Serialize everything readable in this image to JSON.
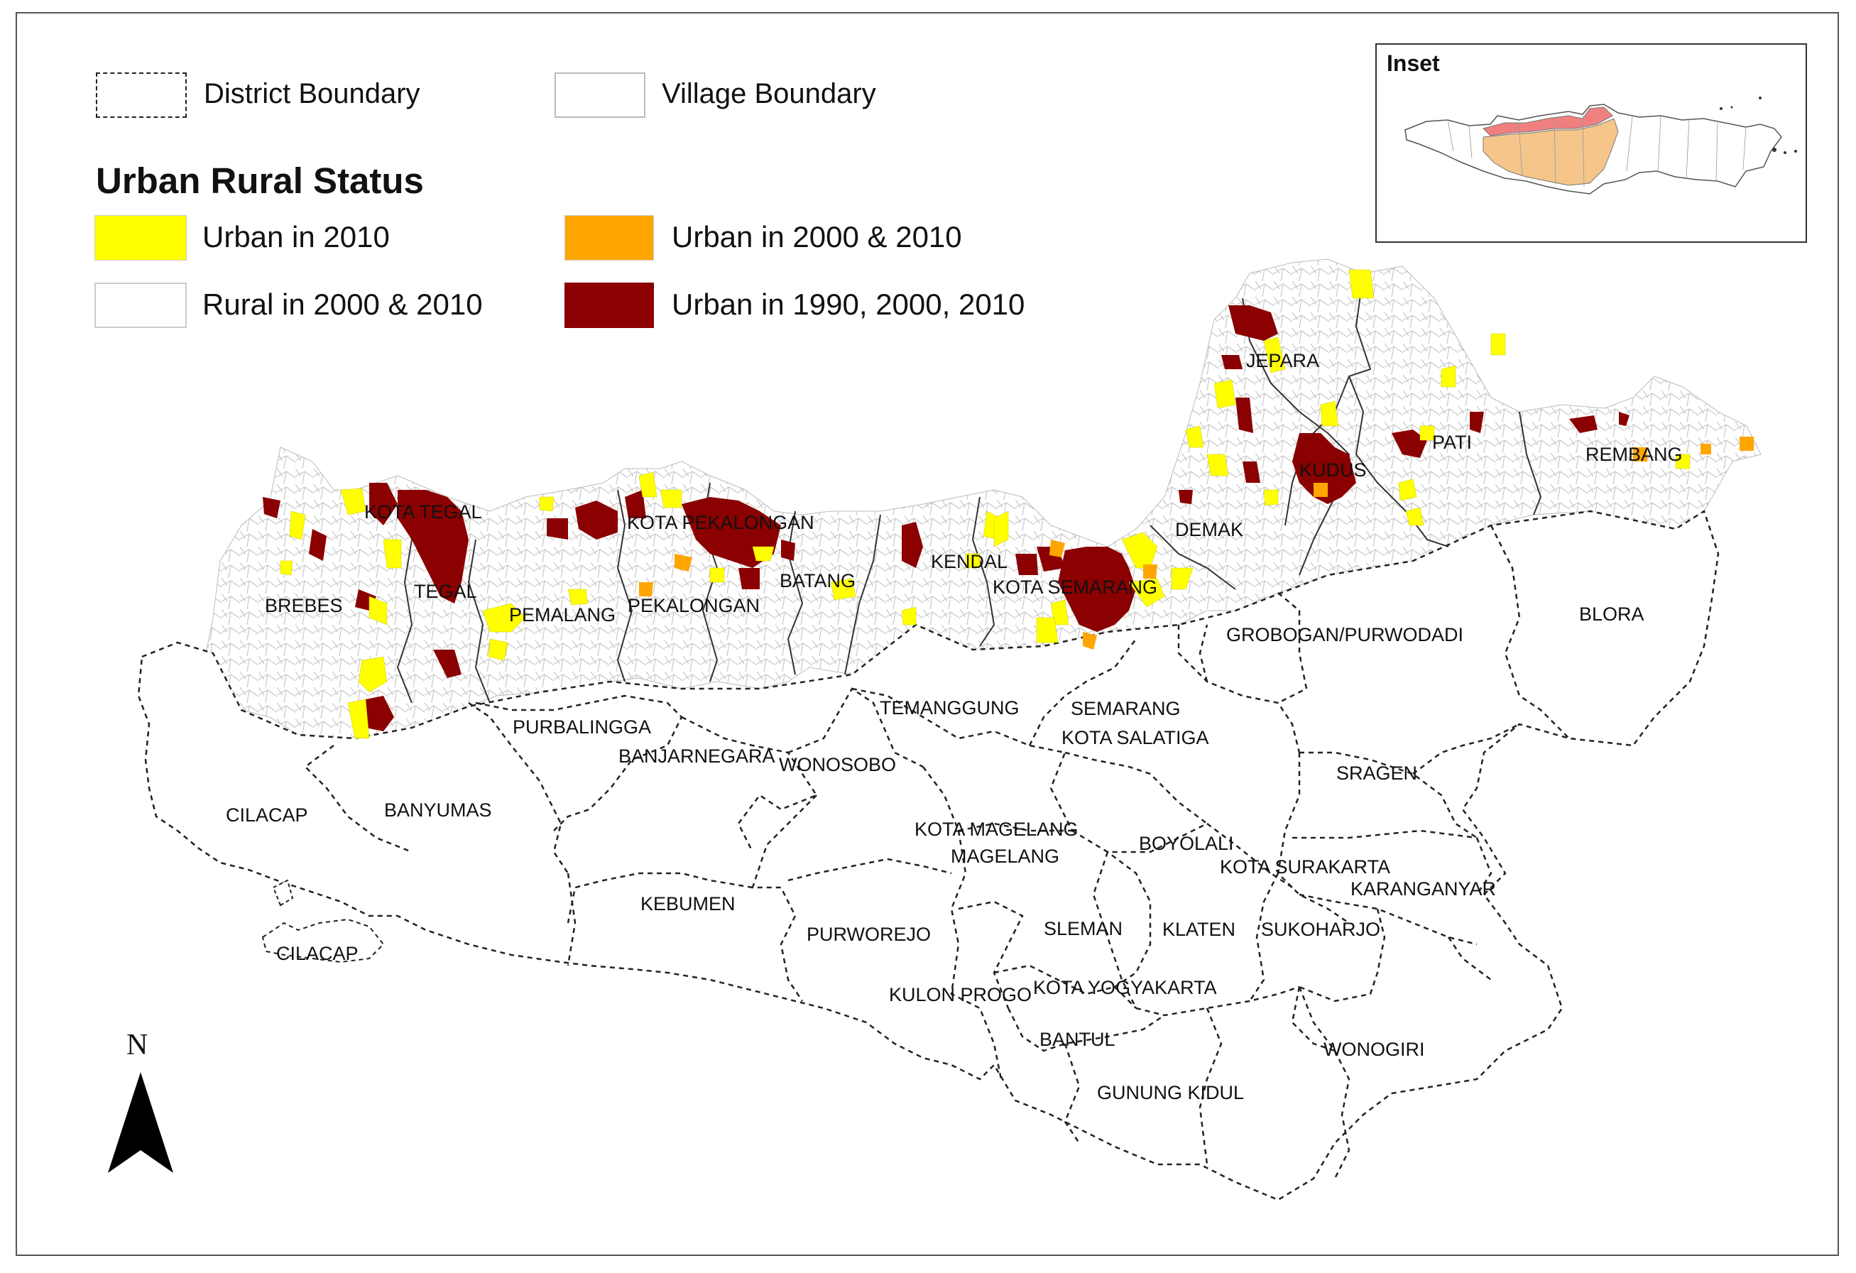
{
  "legend": {
    "district_boundary": "District Boundary",
    "village_boundary": "Village Boundary",
    "title": "Urban Rural Status",
    "classes": [
      {
        "label": "Urban in 2010",
        "color": "#ffff00"
      },
      {
        "label": "Urban in 2000 & 2010",
        "color": "#ffa500"
      },
      {
        "label": "Rural in 2000 & 2010",
        "color": "#ffffff"
      },
      {
        "label": "Urban in 1990, 2000, 2010",
        "color": "#8b0000"
      }
    ]
  },
  "inset": {
    "title": "Inset",
    "highlight_north_color": "#f08080",
    "highlight_south_color": "#f5c58a"
  },
  "north_arrow": {
    "label": "N"
  },
  "districts": [
    "KOTA TEGAL",
    "TEGAL",
    "BREBES",
    "PEMALANG",
    "KOTA PEKALONGAN",
    "PEKALONGAN",
    "BATANG",
    "KENDAL",
    "KOTA SEMARANG",
    "DEMAK",
    "JEPARA",
    "KUDUS",
    "PATI",
    "REMBANG",
    "BLORA",
    "GROBOGAN/PURWODADI",
    "SEMARANG",
    "KOTA SALATIGA",
    "TEMANGGUNG",
    "PURBALINGGA",
    "BANJARNEGARA",
    "WONOSOBO",
    "CILACAP",
    "BANYUMAS",
    "SRAGEN",
    "KOTA MAGELANG",
    "MAGELANG",
    "BOYOLALI",
    "KOTA SURAKARTA",
    "KARANGANYAR",
    "KEBUMEN",
    "PURWOREJO",
    "SLEMAN",
    "KLATEN",
    "SUKOHARJO",
    "KULON PROGO",
    "KOTA YOGYAKARTA",
    "BANTUL",
    "WONOGIRI",
    "GUNUNG KIDUL",
    "CILACAP"
  ]
}
